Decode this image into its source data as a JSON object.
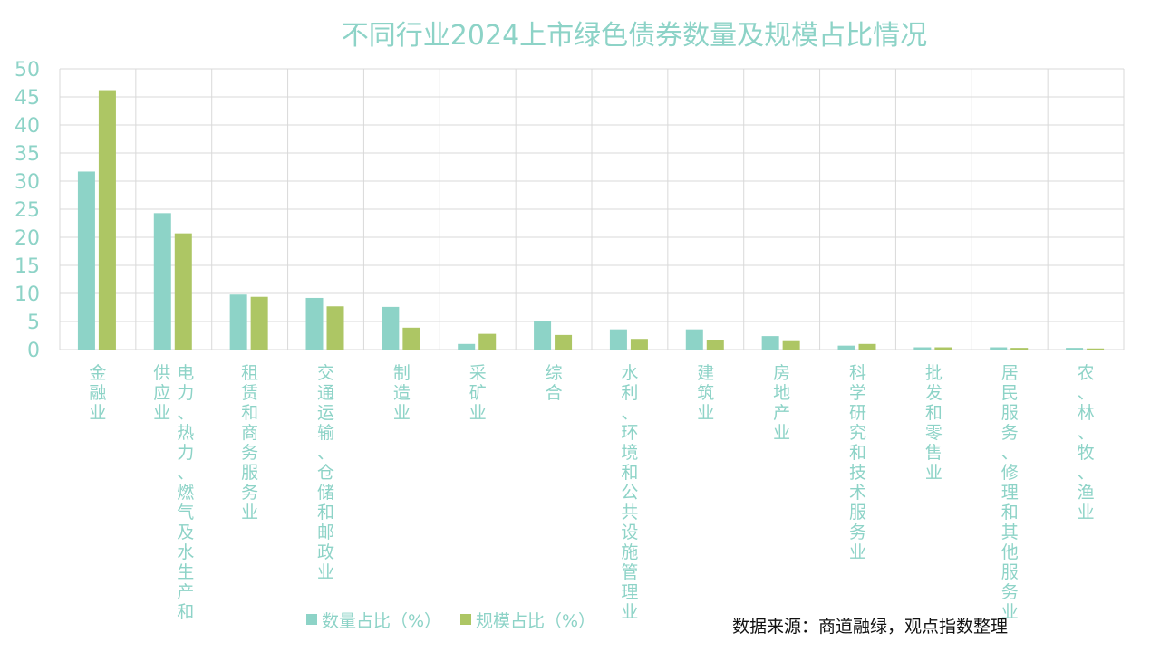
{
  "chart_data": {
    "type": "bar",
    "title": "不同行业2024上市绿色债券数量及规模占比情况",
    "ylim": [
      0,
      50
    ],
    "yticks": [
      0,
      5,
      10,
      15,
      20,
      25,
      30,
      35,
      40,
      45,
      50
    ],
    "grid": true,
    "legend_position": "bottom",
    "categories": [
      "金融业",
      "电力、热力、燃气及水生产和供应业",
      "租赁和商务服务业",
      "交通运输、仓储和邮政业",
      "制造业",
      "采矿业",
      "综合",
      "水利、环境和公共设施管理业",
      "建筑业",
      "房地产业",
      "科学研究和技术服务业",
      "批发和零售业",
      "居民服务、修理和其他服务业",
      "农、林、牧、渔业"
    ],
    "series": [
      {
        "name": "数量占比（%）",
        "color": "#8dd3c7",
        "values": [
          31.7,
          24.3,
          9.8,
          9.2,
          7.6,
          1.0,
          5.0,
          3.6,
          3.6,
          2.4,
          0.7,
          0.4,
          0.4,
          0.3
        ]
      },
      {
        "name": "规模占比（%）",
        "color": "#adc664",
        "values": [
          46.2,
          20.7,
          9.4,
          7.7,
          3.9,
          2.8,
          2.6,
          1.9,
          1.7,
          1.5,
          1.0,
          0.4,
          0.3,
          0.2
        ]
      }
    ]
  },
  "source_note": "数据来源：商道融绿，观点指数整理"
}
